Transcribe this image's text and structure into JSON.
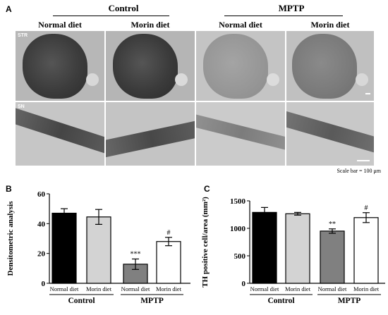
{
  "panelA": {
    "letter": "A",
    "groups": [
      "Control",
      "MPTP"
    ],
    "columns": [
      "Normal diet",
      "Morin diet",
      "Normal diet",
      "Morin diet"
    ],
    "rows": [
      "STR",
      "SN"
    ],
    "scale_text": "Scale bar = 100 μm"
  },
  "panelB": {
    "letter": "B"
  },
  "panelC": {
    "letter": "C"
  },
  "chart_data": [
    {
      "type": "bar",
      "panel": "B",
      "categories": [
        "Normal diet",
        "Morin diet",
        "Normal diet",
        "Morin diet"
      ],
      "groups": [
        {
          "label": "Control",
          "categories": [
            0,
            1
          ]
        },
        {
          "label": "MPTP",
          "categories": [
            2,
            3
          ]
        }
      ],
      "values": [
        47,
        44.5,
        12.8,
        28
      ],
      "errors": [
        3,
        5,
        3.5,
        2.8
      ],
      "annotations": [
        "",
        "",
        "***",
        "#"
      ],
      "bar_colors": [
        "#000000",
        "#d3d3d3",
        "#808080",
        "#ffffff"
      ],
      "ylabel": "Densitometric analysis",
      "ylim": [
        0,
        60
      ],
      "yticks": [
        0,
        20,
        40,
        60
      ]
    },
    {
      "type": "bar",
      "panel": "C",
      "categories": [
        "Normal diet",
        "Morin diet",
        "Normal diet",
        "Morin diet"
      ],
      "groups": [
        {
          "label": "Control",
          "categories": [
            0,
            1
          ]
        },
        {
          "label": "MPTP",
          "categories": [
            2,
            3
          ]
        }
      ],
      "values": [
        1290,
        1265,
        950,
        1195
      ],
      "errors": [
        90,
        25,
        40,
        90
      ],
      "annotations": [
        "",
        "",
        "**",
        "#"
      ],
      "bar_colors": [
        "#000000",
        "#d3d3d3",
        "#808080",
        "#ffffff"
      ],
      "ylabel": "TH positive cell/area (mm²)",
      "ylim": [
        0,
        1500
      ],
      "yticks": [
        0,
        500,
        1000,
        1500
      ]
    }
  ]
}
